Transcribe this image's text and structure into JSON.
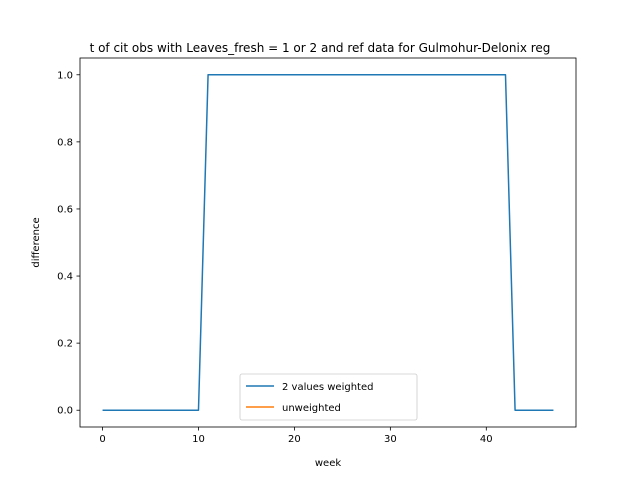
{
  "chart_data": {
    "type": "line",
    "title": "t of cit obs with Leaves_fresh = 1 or 2 and ref data for Gulmohur-Delonix reg",
    "xlabel": "week",
    "ylabel": "difference",
    "xlim": [
      -2.35,
      49.35
    ],
    "ylim": [
      -0.05,
      1.05
    ],
    "xticks": [
      0,
      10,
      20,
      30,
      40
    ],
    "yticks": [
      0.0,
      0.2,
      0.4,
      0.6,
      0.8,
      1.0
    ],
    "xtick_labels": [
      "0",
      "10",
      "20",
      "30",
      "40"
    ],
    "ytick_labels": [
      "0.0",
      "0.2",
      "0.4",
      "0.6",
      "0.8",
      "1.0"
    ],
    "grid": false,
    "legend_position": "lower center",
    "series": [
      {
        "name": "2 values weighted",
        "color": "#1f77b4",
        "x": [
          0,
          1,
          2,
          3,
          4,
          5,
          6,
          7,
          8,
          9,
          10,
          11,
          12,
          13,
          14,
          15,
          16,
          17,
          18,
          19,
          20,
          21,
          22,
          23,
          24,
          25,
          26,
          27,
          28,
          29,
          30,
          31,
          32,
          33,
          34,
          35,
          36,
          37,
          38,
          39,
          40,
          41,
          42,
          43,
          44,
          45,
          46,
          47
        ],
        "y": [
          0,
          0,
          0,
          0,
          0,
          0,
          0,
          0,
          0,
          0,
          0,
          1,
          1,
          1,
          1,
          1,
          1,
          1,
          1,
          1,
          1,
          1,
          1,
          1,
          1,
          1,
          1,
          1,
          1,
          1,
          1,
          1,
          1,
          1,
          1,
          1,
          1,
          1,
          1,
          1,
          1,
          1,
          1,
          0,
          0,
          0,
          0,
          0
        ]
      },
      {
        "name": "unweighted",
        "color": "#ff7f0e",
        "x": [],
        "y": []
      }
    ]
  }
}
